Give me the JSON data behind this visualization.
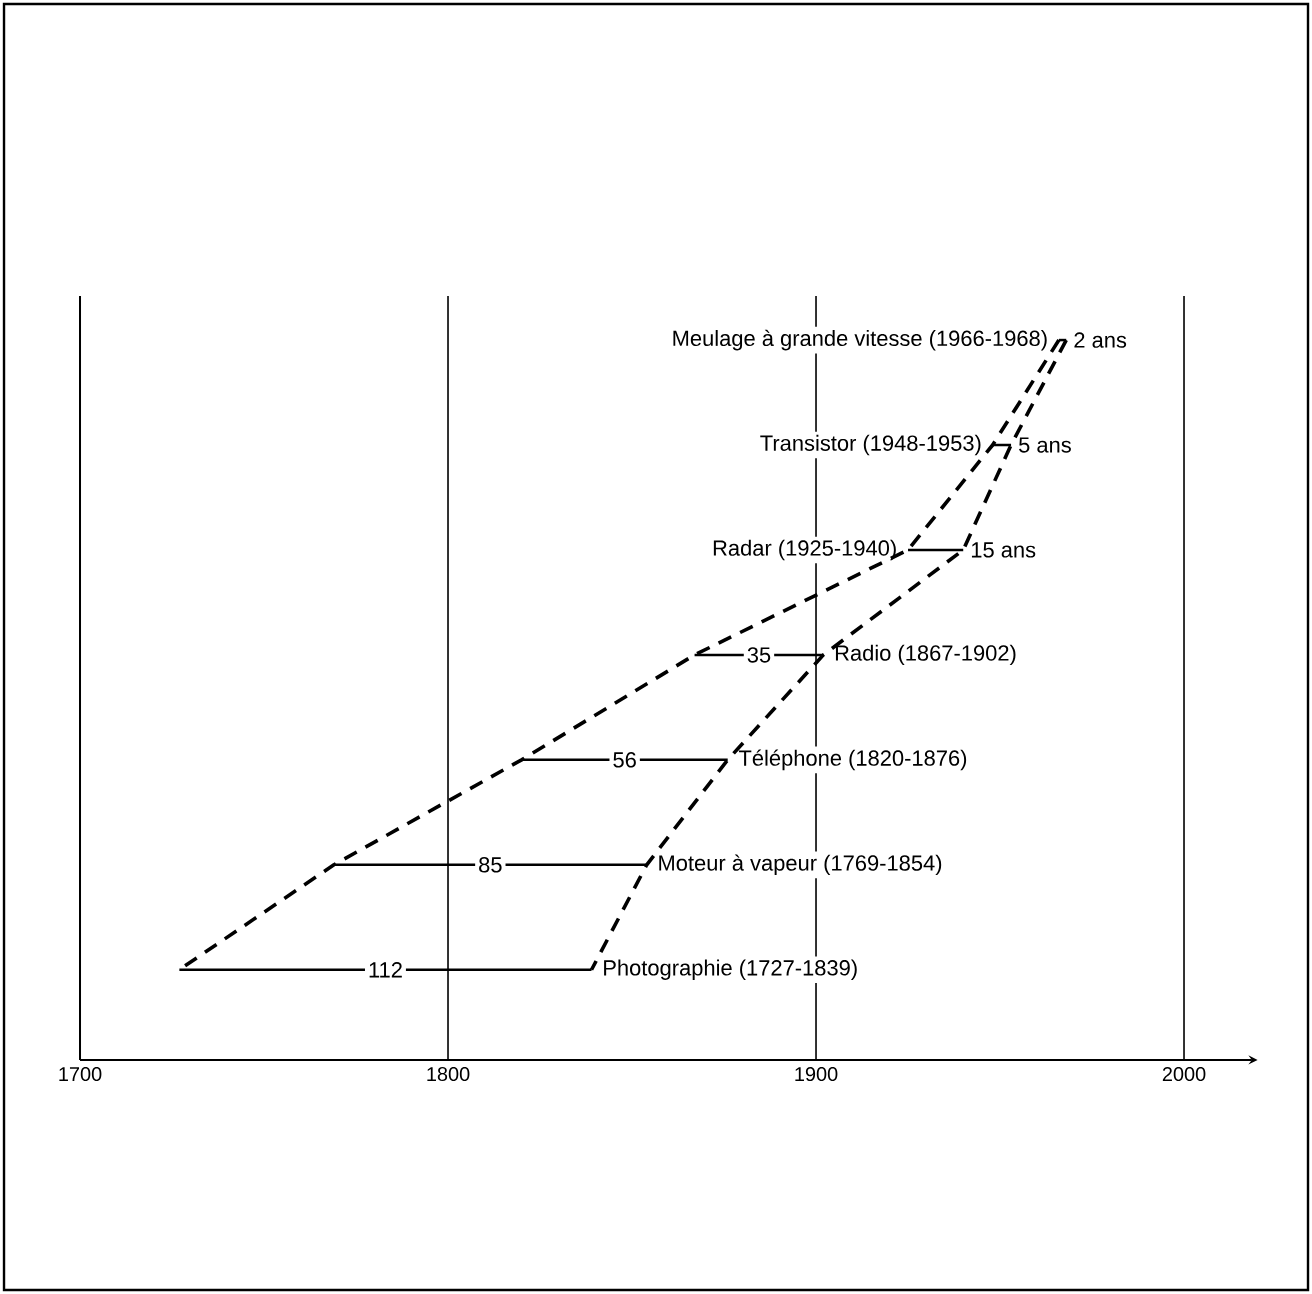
{
  "chart_data": {
    "type": "bar",
    "orientation": "horizontal",
    "categories": [
      "Meulage à grande vitesse (1966-1968)",
      "Transistor (1948-1953)",
      "Radar (1925-1940)",
      "Radio (1867-1902)",
      "Téléphone (1820-1876)",
      "Moteur à vapeur (1769-1854)",
      "Photographie (1727-1839)"
    ],
    "series": [
      {
        "color": "#000000",
        "base": [
          1966,
          1948,
          1925,
          1867,
          1820,
          1769,
          1727
        ],
        "values": [
          2,
          5,
          15,
          35,
          56,
          85,
          112
        ],
        "value_labels": [
          "2 ans",
          "5 ans",
          "15 ans",
          "35",
          "56",
          "85",
          "112"
        ]
      },
      {
        "type": "line",
        "color": "#000000",
        "line_style": "dashed",
        "values": [
          1966,
          1948,
          1925,
          1867,
          1820,
          1769,
          1727
        ]
      },
      {
        "type": "line",
        "color": "#000000",
        "line_style": "dashed",
        "values": [
          1968,
          1953,
          1940,
          1902,
          1876,
          1854,
          1839
        ]
      }
    ],
    "xlim": [
      1700,
      2020
    ],
    "xticks": [
      1700,
      1800,
      1900,
      2000
    ],
    "grid": "x",
    "tick_labels": "x"
  }
}
